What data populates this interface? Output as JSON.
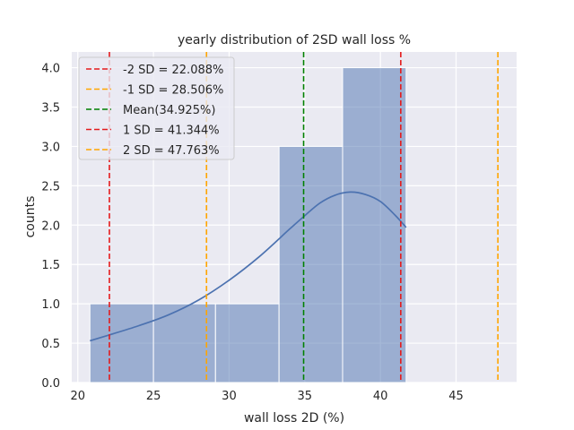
{
  "chart_data": {
    "type": "bar",
    "title": "yearly distribution of 2SD wall loss %",
    "xlabel": "wall loss 2D (%)",
    "ylabel": "counts",
    "xlim": [
      19.6,
      49.0
    ],
    "ylim": [
      0,
      4.2
    ],
    "xticks": [
      20,
      25,
      30,
      35,
      40,
      45
    ],
    "yticks": [
      0.0,
      0.5,
      1.0,
      1.5,
      2.0,
      2.5,
      3.0,
      3.5,
      4.0
    ],
    "grid": true,
    "legend_position": "top-left",
    "bins": [
      {
        "start": 20.8,
        "end": 25.0,
        "count": 1
      },
      {
        "start": 25.0,
        "end": 29.1,
        "count": 1
      },
      {
        "start": 29.1,
        "end": 33.3,
        "count": 1
      },
      {
        "start": 33.3,
        "end": 37.5,
        "count": 3
      },
      {
        "start": 37.5,
        "end": 41.7,
        "count": 4
      }
    ],
    "bar_color": "#4c72b0",
    "kde": {
      "color": "#4c72b0",
      "x": [
        20.8,
        22,
        24,
        26,
        28,
        30,
        32,
        34,
        35,
        36,
        37,
        38,
        39,
        40,
        41,
        41.7
      ],
      "y": [
        0.53,
        0.6,
        0.72,
        0.86,
        1.05,
        1.3,
        1.6,
        1.95,
        2.12,
        2.28,
        2.38,
        2.42,
        2.39,
        2.3,
        2.12,
        1.97
      ]
    },
    "reference_lines": [
      {
        "label": "-2 SD = 22.088%",
        "x": 22.088,
        "color": "#e41a1c"
      },
      {
        "label": "-1 SD = 28.506%",
        "x": 28.506,
        "color": "#ffa500"
      },
      {
        "label": "Mean(34.925%)",
        "x": 34.925,
        "color": "#008000"
      },
      {
        "label": "1 SD = 41.344%",
        "x": 41.344,
        "color": "#e41a1c"
      },
      {
        "label": "2 SD = 47.763%",
        "x": 47.763,
        "color": "#ffa500"
      }
    ]
  }
}
